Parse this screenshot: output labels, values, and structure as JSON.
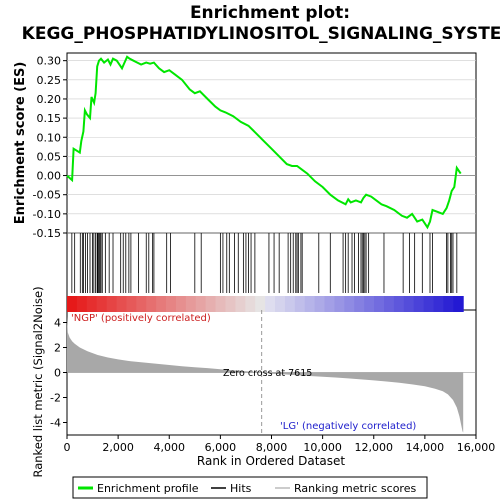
{
  "colors": {
    "es_line": "#00e600",
    "hits": "#000000",
    "metric_fill": "#a8a8a8",
    "pos_label": "#cc2020",
    "neg_label": "#2020cc",
    "zero_dash": "#999999",
    "axis": "#000000",
    "grid": "#cccccc"
  },
  "chart_data": {
    "type": "line",
    "title_line1": "Enrichment plot:",
    "title_line2": "KEGG_PHOSPHATIDYLINOSITOL_SIGNALING_SYSTEM",
    "xlabel": "Rank in Ordered Dataset",
    "es_panel": {
      "ylabel": "Enrichment score (ES)",
      "ylim": [
        -0.15,
        0.32
      ],
      "yticks": [
        -0.15,
        -0.1,
        -0.05,
        0.0,
        0.05,
        0.1,
        0.15,
        0.2,
        0.25,
        0.3
      ],
      "ytick_labels": [
        "-0.15",
        "-0.10",
        "-0.05",
        "0.00",
        "0.05",
        "0.10",
        "0.15",
        "0.20",
        "0.25",
        "0.30"
      ],
      "series": [
        {
          "name": "Enrichment profile",
          "x": [
            0,
            200,
            260,
            500,
            560,
            640,
            700,
            780,
            900,
            960,
            1060,
            1120,
            1180,
            1250,
            1330,
            1450,
            1600,
            1700,
            1800,
            1950,
            2150,
            2250,
            2350,
            2450,
            2600,
            2750,
            2900,
            3100,
            3250,
            3400,
            3600,
            3800,
            4000,
            4200,
            4500,
            4800,
            5000,
            5200,
            5500,
            5800,
            6000,
            6200,
            6500,
            6800,
            7100,
            7400,
            7700,
            8000,
            8300,
            8600,
            8800,
            9000,
            9200,
            9400,
            9700,
            10000,
            10300,
            10600,
            10900,
            11000,
            11100,
            11300,
            11500,
            11600,
            11700,
            11900,
            12100,
            12300,
            12500,
            12800,
            13100,
            13300,
            13500,
            13700,
            13900,
            14100,
            14200,
            14300,
            14500,
            14700,
            14850,
            14950,
            15050,
            15150,
            15250,
            15400
          ],
          "y": [
            0.0,
            -0.012,
            0.07,
            0.06,
            0.09,
            0.115,
            0.17,
            0.16,
            0.15,
            0.205,
            0.19,
            0.215,
            0.285,
            0.3,
            0.305,
            0.295,
            0.303,
            0.29,
            0.305,
            0.3,
            0.28,
            0.295,
            0.31,
            0.305,
            0.3,
            0.295,
            0.29,
            0.295,
            0.292,
            0.295,
            0.28,
            0.27,
            0.275,
            0.265,
            0.25,
            0.225,
            0.215,
            0.22,
            0.2,
            0.18,
            0.17,
            0.165,
            0.155,
            0.14,
            0.13,
            0.11,
            0.09,
            0.07,
            0.05,
            0.03,
            0.025,
            0.025,
            0.015,
            0.005,
            -0.015,
            -0.03,
            -0.05,
            -0.065,
            -0.075,
            -0.062,
            -0.07,
            -0.065,
            -0.07,
            -0.058,
            -0.05,
            -0.055,
            -0.065,
            -0.075,
            -0.08,
            -0.09,
            -0.105,
            -0.11,
            -0.1,
            -0.12,
            -0.115,
            -0.135,
            -0.12,
            -0.09,
            -0.095,
            -0.1,
            -0.085,
            -0.065,
            -0.04,
            -0.03,
            0.02,
            0.005
          ]
        }
      ]
    },
    "hits_positions": [
      190,
      300,
      520,
      600,
      650,
      720,
      800,
      900,
      1000,
      1050,
      1120,
      1180,
      1210,
      1250,
      1290,
      1330,
      1380,
      1500,
      1650,
      1800,
      2100,
      2200,
      2300,
      2420,
      2500,
      2800,
      3100,
      3200,
      3350,
      3400,
      3900,
      4050,
      5000,
      5250,
      6000,
      6100,
      6250,
      6350,
      6550,
      6700,
      6900,
      7000,
      7100,
      7200,
      7350,
      7900,
      8100,
      8300,
      8650,
      8750,
      8850,
      8950,
      9000,
      9050,
      9150,
      9200,
      9850,
      10300,
      10800,
      10900,
      11000,
      11150,
      11250,
      11400,
      11500,
      11550,
      11600,
      11650,
      11700,
      11800,
      12400,
      13150,
      13400,
      13600,
      13900,
      14200,
      14300,
      14850,
      14900,
      15000,
      15050,
      15100,
      15250
    ],
    "metric_panel": {
      "ylabel": "Ranked list metric (Signal2Noise)",
      "ylim": [
        -5,
        5
      ],
      "yticks": [
        -4,
        -2,
        0,
        2,
        4
      ],
      "ytick_labels": [
        "-4",
        "-2",
        "0",
        "2",
        "4"
      ],
      "xs": [
        0,
        30,
        100,
        200,
        300,
        500,
        800,
        1200,
        1600,
        2000,
        2500,
        3000,
        3500,
        4000,
        4500,
        5000,
        5500,
        6000,
        6500,
        7000,
        7615,
        8000,
        8500,
        9000,
        9500,
        10000,
        10500,
        11000,
        11500,
        12000,
        12500,
        13000,
        13500,
        14000,
        14400,
        14700,
        14900,
        15100,
        15250,
        15350,
        15420,
        15470,
        15500
      ],
      "ys": [
        4.5,
        3.2,
        2.8,
        2.5,
        2.3,
        2.0,
        1.7,
        1.4,
        1.2,
        1.05,
        0.9,
        0.8,
        0.7,
        0.6,
        0.5,
        0.42,
        0.35,
        0.26,
        0.18,
        0.1,
        0.0,
        -0.1,
        -0.15,
        -0.22,
        -0.28,
        -0.34,
        -0.4,
        -0.47,
        -0.55,
        -0.63,
        -0.72,
        -0.82,
        -0.95,
        -1.1,
        -1.3,
        -1.5,
        -1.75,
        -2.2,
        -2.8,
        -3.5,
        -4.2,
        -4.7,
        -4.8
      ]
    },
    "zero_cross_rank": 7615,
    "zero_cross_label": "Zero cross at 7615",
    "pos_label": "'NGP' (positively correlated)",
    "neg_label": "'LG' (negatively correlated)",
    "xlim": [
      0,
      16000
    ],
    "n_genes": 15500,
    "xticks": [
      0,
      2000,
      4000,
      6000,
      8000,
      10000,
      12000,
      14000,
      16000
    ],
    "xtick_labels": [
      "0",
      "2,000",
      "4,000",
      "6,000",
      "8,000",
      "10,000",
      "12,000",
      "14,000",
      "16,000"
    ],
    "legend": {
      "placement": "bottom",
      "items": [
        {
          "label": "Enrichment profile",
          "kind": "es"
        },
        {
          "label": "Hits",
          "kind": "hits"
        },
        {
          "label": "Ranking metric scores",
          "kind": "metric"
        }
      ]
    }
  }
}
